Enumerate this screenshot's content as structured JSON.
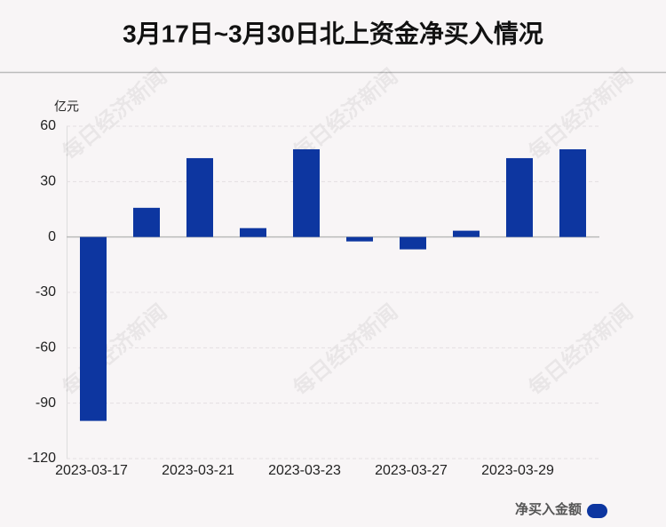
{
  "chart_data": {
    "type": "bar",
    "title": "3月17日~3月30日北上资金净买入情况",
    "y_label": "亿元",
    "watermark": "每日经济新闻",
    "categories": [
      "2023-03-17",
      null,
      "2023-03-21",
      null,
      "2023-03-23",
      null,
      "2023-03-27",
      null,
      "2023-03-29",
      null
    ],
    "series": [
      {
        "name": "净买入金额",
        "color": "#0d36a0",
        "values": [
          -99.6,
          15.8,
          42.7,
          4.8,
          47.5,
          -2.4,
          -6.7,
          3.4,
          42.7,
          47.5
        ]
      }
    ],
    "ylim": [
      -120,
      60
    ],
    "yticks": [
      -120,
      -90,
      -60,
      -30,
      0,
      30,
      60
    ],
    "grid": true,
    "legend": "bottom-right"
  }
}
